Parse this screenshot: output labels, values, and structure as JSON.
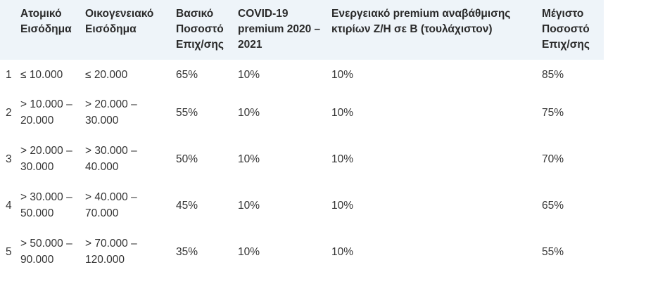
{
  "table": {
    "headers": [
      "",
      "Ατομικό Εισόδημα",
      "Οικογενειακό Εισόδημα",
      "Βασικό Ποσοστό Επιχ/σης",
      "COVID-19 premium 2020 – 2021",
      "Ενεργειακό premium αναβάθμισης κτιρίων Ζ/Η σε Β (τουλάχιστον)",
      "Μέγιστο Ποσοστό Επιχ/σης"
    ],
    "rows": [
      [
        "1",
        "≤ 10.000",
        "≤ 20.000",
        "65%",
        "10%",
        "10%",
        "85%"
      ],
      [
        "2",
        "> 10.000 – 20.000",
        "> 20.000 – 30.000",
        "55%",
        "10%",
        "10%",
        "75%"
      ],
      [
        "3",
        "> 20.000 – 30.000",
        "> 30.000 – 40.000",
        "50%",
        "10%",
        "10%",
        "70%"
      ],
      [
        "4",
        "> 30.000 – 50.000",
        "> 40.000 – 70.000",
        "45%",
        "10%",
        "10%",
        "65%"
      ],
      [
        "5",
        "> 50.000 – 90.000",
        "> 70.000 – 120.000",
        "35%",
        "10%",
        "10%",
        "55%"
      ]
    ]
  },
  "colors": {
    "header_background": "#eef4f9",
    "header_text": "#2a2a2a",
    "body_text": "#333333"
  }
}
